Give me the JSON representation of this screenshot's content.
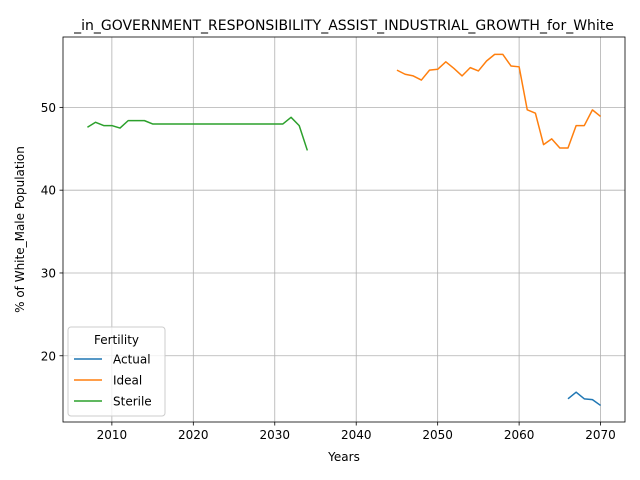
{
  "chart_data": {
    "type": "line",
    "title": "_in_GOVERNMENT_RESPONSIBILITY_ASSIST_INDUSTRIAL_GROWTH_for_White",
    "xlabel": "Years",
    "ylabel": "% of White_Male Population",
    "xlim": [
      2004,
      2073
    ],
    "ylim": [
      12,
      58.5
    ],
    "xticks": [
      2010,
      2020,
      2030,
      2040,
      2050,
      2060,
      2070
    ],
    "yticks": [
      20,
      30,
      40,
      50
    ],
    "grid": true,
    "legend": {
      "title": "Fertility",
      "placement": "lower-left"
    },
    "series": [
      {
        "name": "Actual",
        "color": "#1f77b4",
        "x": [
          2066,
          2067,
          2068,
          2069,
          2070
        ],
        "y": [
          14.8,
          15.6,
          14.8,
          14.7,
          14.0
        ]
      },
      {
        "name": "Ideal",
        "color": "#ff7f0e",
        "x": [
          2045,
          2046,
          2047,
          2048,
          2049,
          2050,
          2051,
          2052,
          2053,
          2054,
          2055,
          2056,
          2057,
          2058,
          2059,
          2060,
          2061,
          2062,
          2063,
          2064,
          2065,
          2066,
          2067,
          2068,
          2069,
          2070
        ],
        "y": [
          54.5,
          54.0,
          53.8,
          53.3,
          54.5,
          54.6,
          55.5,
          54.7,
          53.8,
          54.8,
          54.4,
          55.6,
          56.4,
          56.4,
          55.0,
          54.9,
          49.7,
          49.3,
          45.5,
          46.2,
          45.1,
          45.1,
          47.8,
          47.8,
          49.7,
          48.9
        ]
      },
      {
        "name": "Sterile",
        "color": "#2ca02c",
        "x": [
          2007,
          2008,
          2009,
          2010,
          2011,
          2012,
          2013,
          2014,
          2015,
          2016,
          2017,
          2018,
          2019,
          2020,
          2021,
          2022,
          2023,
          2024,
          2025,
          2026,
          2027,
          2028,
          2029,
          2030,
          2031,
          2032,
          2033,
          2034
        ],
        "y": [
          47.6,
          48.2,
          47.8,
          47.8,
          47.5,
          48.4,
          48.4,
          48.4,
          48.0,
          48.0,
          48.0,
          48.0,
          48.0,
          48.0,
          48.0,
          48.0,
          48.0,
          48.0,
          48.0,
          48.0,
          48.0,
          48.0,
          48.0,
          48.0,
          48.0,
          48.8,
          47.8,
          44.8
        ]
      }
    ]
  }
}
